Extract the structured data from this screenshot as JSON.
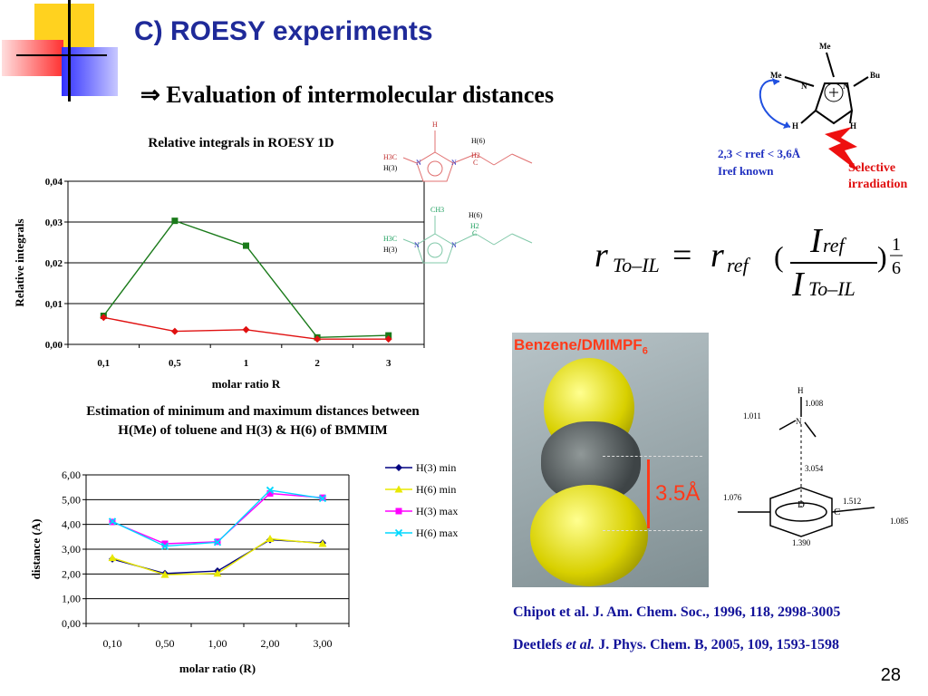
{
  "slide": {
    "title": "C) ROESY experiments",
    "subtitle": "⇒ Evaluation of intermolecular distances",
    "page_number": "28"
  },
  "molecule_top": {
    "me_top": "Me",
    "me_left": "Me",
    "bu": "Bu",
    "n1": "N",
    "n2": "N",
    "h_left": "H",
    "h_right": "H",
    "range_label": "2,3 < rref < 3,6Å",
    "iref_label": "Iref known",
    "selective": "Selective",
    "irradiation": "irradiation"
  },
  "formula": {
    "r": "r",
    "sub_to_il": "To–IL",
    "eq": "=",
    "rref": "r",
    "sub_ref": "ref",
    "I_num": "I",
    "I_num_sub": "ref",
    "I_den": "I",
    "I_den_sub": "To–IL",
    "exp_num": "1",
    "exp_den": "6"
  },
  "small_molecules": {
    "h_top": "H",
    "h6_a": "H(6)",
    "h2c_a": "H2",
    "c_a": "C",
    "h3c_a": "H3C",
    "n_a1": "N",
    "n_a2": "N",
    "h3_a": "H(3)",
    "ch3_b": "CH3",
    "h6_b": "H(6)",
    "h2c_b": "H2",
    "c_b": "C",
    "h3c_b": "H3C",
    "n_b1": "N",
    "n_b2": "N",
    "h3_b": "H(3)"
  },
  "benzene_image": {
    "label": "Benzene/DMIMPF",
    "label_sub": "6",
    "distance": "3.5Å"
  },
  "toluene_diagram": {
    "d_label": "D",
    "d1": "1.008",
    "d2": "1.011",
    "d3": "3.054",
    "d4": "1.076",
    "d5": "1.390",
    "d6": "1.512",
    "d7": "1.085",
    "n": "N",
    "h": "H",
    "c": "C"
  },
  "references": {
    "ref1": "Chipot et al. J. Am. Chem. Soc., 1996, 118, 2998-3005",
    "ref2_a": "Deetlefs ",
    "ref2_b": "et al.",
    "ref2_c": " J. Phys. Chem. B, 2005, 109, 1593-1598"
  },
  "chart_data": [
    {
      "type": "line",
      "title": "Relative integrals in ROESY 1D",
      "xlabel": "molar ratio R",
      "ylabel": "Relative integrals",
      "categories": [
        "0,1",
        "0,5",
        "1",
        "2",
        "3"
      ],
      "ylim": [
        0,
        0.04
      ],
      "yticks": [
        "0,00",
        "0,01",
        "0,02",
        "0,03",
        "0,04"
      ],
      "grid": true,
      "legend": "none",
      "series": [
        {
          "color": "#1a7a1a",
          "marker": "square",
          "values": [
            0.007,
            0.0303,
            0.0242,
            0.0017,
            0.0022
          ]
        },
        {
          "color": "#e01010",
          "marker": "diamond",
          "values": [
            0.0066,
            0.0032,
            0.0036,
            0.0013,
            0.0013
          ]
        }
      ]
    },
    {
      "type": "line",
      "title": "Estimation of minimum and maximum distances between H(Me) of toluene and H(3) & H(6) of BMMIM",
      "xlabel": "molar ratio (R)",
      "ylabel": "distance (A)",
      "categories": [
        "0,10",
        "0,50",
        "1,00",
        "2,00",
        "3,00"
      ],
      "ylim": [
        0,
        6
      ],
      "yticks": [
        "0,00",
        "1,00",
        "2,00",
        "3,00",
        "4,00",
        "5,00",
        "6,00"
      ],
      "grid": true,
      "legend": "right",
      "series": [
        {
          "name": "H(3) min",
          "color": "#000080",
          "marker": "diamond",
          "values": [
            2.6,
            2.02,
            2.12,
            3.38,
            3.25
          ]
        },
        {
          "name": "H(6) min",
          "color": "#e8e800",
          "marker": "triangle",
          "values": [
            2.65,
            1.97,
            2.02,
            3.42,
            3.22
          ]
        },
        {
          "name": "H(3) max",
          "color": "#ff00ff",
          "marker": "square",
          "values": [
            4.1,
            3.22,
            3.3,
            5.25,
            5.08
          ]
        },
        {
          "name": "H(6) max",
          "color": "#00d8ff",
          "marker": "x",
          "values": [
            4.12,
            3.12,
            3.28,
            5.38,
            5.05
          ]
        }
      ]
    }
  ]
}
